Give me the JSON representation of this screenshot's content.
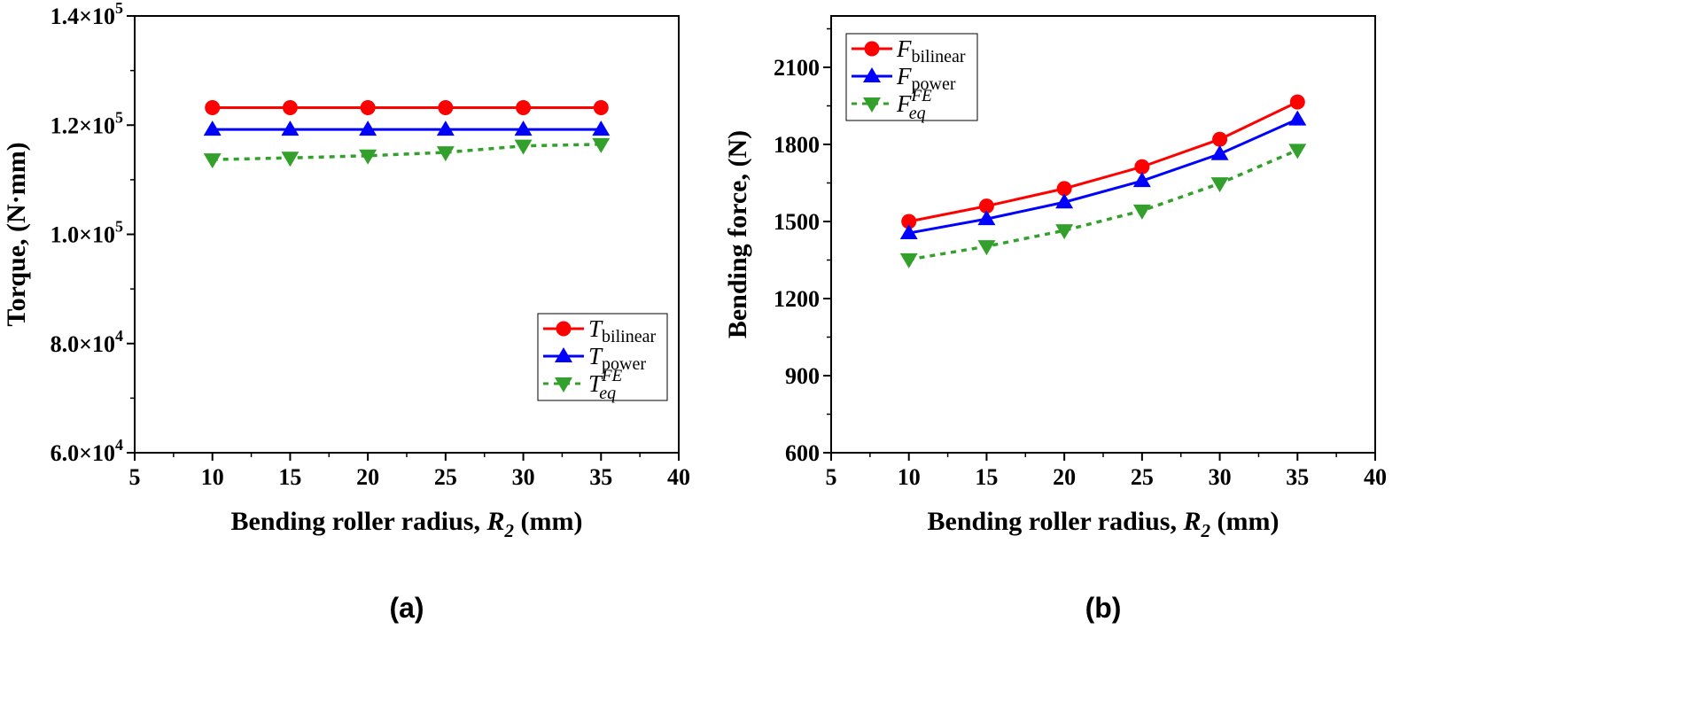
{
  "chart_data": [
    {
      "type": "line",
      "panel_label": "(a)",
      "xlabel_main": "Bending roller radius, ",
      "xlabel_var": "R",
      "xlabel_var_sub": "2",
      "xlabel_unit": " (mm)",
      "ylabel": "Torque, (N·mm)",
      "xlim": [
        5,
        40
      ],
      "ylim": [
        60000,
        140000
      ],
      "x_ticks": [
        5,
        10,
        15,
        20,
        25,
        30,
        35,
        40
      ],
      "x_tick_labels": [
        "5",
        "10",
        "15",
        "20",
        "25",
        "30",
        "35",
        "40"
      ],
      "y_ticks": [
        60000,
        80000,
        100000,
        120000,
        140000
      ],
      "y_tick_mantissas": [
        "6.0×10",
        "8.0×10",
        "1.0×10",
        "1.2×10",
        "1.4×10"
      ],
      "y_tick_exponents": [
        "4",
        "4",
        "5",
        "5",
        "5"
      ],
      "y_minor_step": 10000,
      "x": [
        10,
        15,
        20,
        25,
        30,
        35
      ],
      "legend_position": "lower-right",
      "series": [
        {
          "name": "T",
          "sub": "bilinear",
          "sup": "",
          "color": "#ff0000",
          "marker": "circle",
          "dash": false,
          "values": [
            123200,
            123200,
            123200,
            123200,
            123200,
            123200
          ]
        },
        {
          "name": "T",
          "sub": "power",
          "sup": "",
          "color": "#0000ff",
          "marker": "triangle-up",
          "dash": false,
          "values": [
            119200,
            119200,
            119200,
            119200,
            119200,
            119200
          ]
        },
        {
          "name": "T",
          "sub": "eq",
          "sup": "FE",
          "color": "#33a02c",
          "marker": "triangle-down",
          "dash": true,
          "values": [
            113700,
            114000,
            114400,
            115000,
            116200,
            116500
          ]
        }
      ]
    },
    {
      "type": "line",
      "panel_label": "(b)",
      "xlabel_main": "Bending roller radius, ",
      "xlabel_var": "R",
      "xlabel_var_sub": "2",
      "xlabel_unit": " (mm)",
      "ylabel": "Bending force, (N)",
      "xlim": [
        5,
        40
      ],
      "ylim": [
        600,
        2300
      ],
      "x_ticks": [
        5,
        10,
        15,
        20,
        25,
        30,
        35,
        40
      ],
      "x_tick_labels": [
        "5",
        "10",
        "15",
        "20",
        "25",
        "30",
        "35",
        "40"
      ],
      "y_ticks": [
        600,
        900,
        1200,
        1500,
        1800,
        2100
      ],
      "y_tick_mantissas": [
        "600",
        "900",
        "1200",
        "1500",
        "1800",
        "2100"
      ],
      "y_tick_exponents": [
        "",
        "",
        "",
        "",
        "",
        ""
      ],
      "y_minor_step": 150,
      "x": [
        10,
        15,
        20,
        25,
        30,
        35
      ],
      "legend_position": "top-left",
      "series": [
        {
          "name": "F",
          "sub": "bilinear",
          "sup": "",
          "color": "#ff0000",
          "marker": "circle",
          "dash": false,
          "values": [
            1500,
            1560,
            1628,
            1713,
            1820,
            1965
          ]
        },
        {
          "name": "F",
          "sub": "power",
          "sup": "",
          "color": "#0000ff",
          "marker": "triangle-up",
          "dash": false,
          "values": [
            1455,
            1510,
            1575,
            1658,
            1763,
            1898
          ]
        },
        {
          "name": "F",
          "sub": "eq",
          "sup": "FE",
          "color": "#33a02c",
          "marker": "triangle-down",
          "dash": true,
          "values": [
            1352,
            1403,
            1465,
            1542,
            1648,
            1778
          ]
        }
      ]
    }
  ]
}
